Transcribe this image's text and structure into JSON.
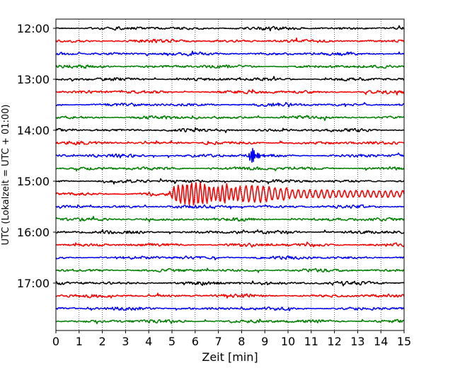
{
  "chart_data": {
    "type": "line",
    "xlabel": "Zeit  [min]",
    "ylabel": "UTC (Lokalzeit = UTC + 01:00)",
    "xlim": [
      0,
      15
    ],
    "x_ticks": [
      "0",
      "1",
      "2",
      "3",
      "4",
      "5",
      "6",
      "7",
      "8",
      "9",
      "10",
      "11",
      "12",
      "13",
      "14",
      "15"
    ],
    "y_tick_labels": [
      "12:00",
      "13:00",
      "14:00",
      "15:00",
      "16:00",
      "17:00"
    ],
    "trace_interval_min": 15,
    "trace_colors": [
      "#000000",
      "#ff0000",
      "#0000ff",
      "#008000"
    ],
    "vertical_grid": "dotted",
    "traces": [
      {
        "start": "12:00",
        "color": "#000000"
      },
      {
        "start": "12:15",
        "color": "#ff0000"
      },
      {
        "start": "12:30",
        "color": "#0000ff"
      },
      {
        "start": "12:45",
        "color": "#008000"
      },
      {
        "start": "13:00",
        "color": "#000000"
      },
      {
        "start": "13:15",
        "color": "#ff0000"
      },
      {
        "start": "13:30",
        "color": "#0000ff"
      },
      {
        "start": "13:45",
        "color": "#008000"
      },
      {
        "start": "14:00",
        "color": "#000000"
      },
      {
        "start": "14:15",
        "color": "#ff0000"
      },
      {
        "start": "14:30",
        "color": "#0000ff",
        "events": [
          {
            "t_min": 8.35,
            "amp": "large",
            "type": "spike"
          }
        ]
      },
      {
        "start": "14:45",
        "color": "#008000"
      },
      {
        "start": "15:00",
        "color": "#000000"
      },
      {
        "start": "15:15",
        "color": "#ff0000",
        "events": [
          {
            "t_min_range": [
              5.0,
              15.0
            ],
            "amp": "large",
            "type": "surface-wave train"
          }
        ]
      },
      {
        "start": "15:30",
        "color": "#0000ff"
      },
      {
        "start": "15:45",
        "color": "#008000"
      },
      {
        "start": "16:00",
        "color": "#000000"
      },
      {
        "start": "16:15",
        "color": "#ff0000"
      },
      {
        "start": "16:30",
        "color": "#0000ff"
      },
      {
        "start": "16:45",
        "color": "#008000"
      },
      {
        "start": "17:00",
        "color": "#000000"
      },
      {
        "start": "17:15",
        "color": "#ff0000"
      },
      {
        "start": "17:30",
        "color": "#0000ff"
      },
      {
        "start": "17:45",
        "color": "#008000"
      }
    ]
  }
}
